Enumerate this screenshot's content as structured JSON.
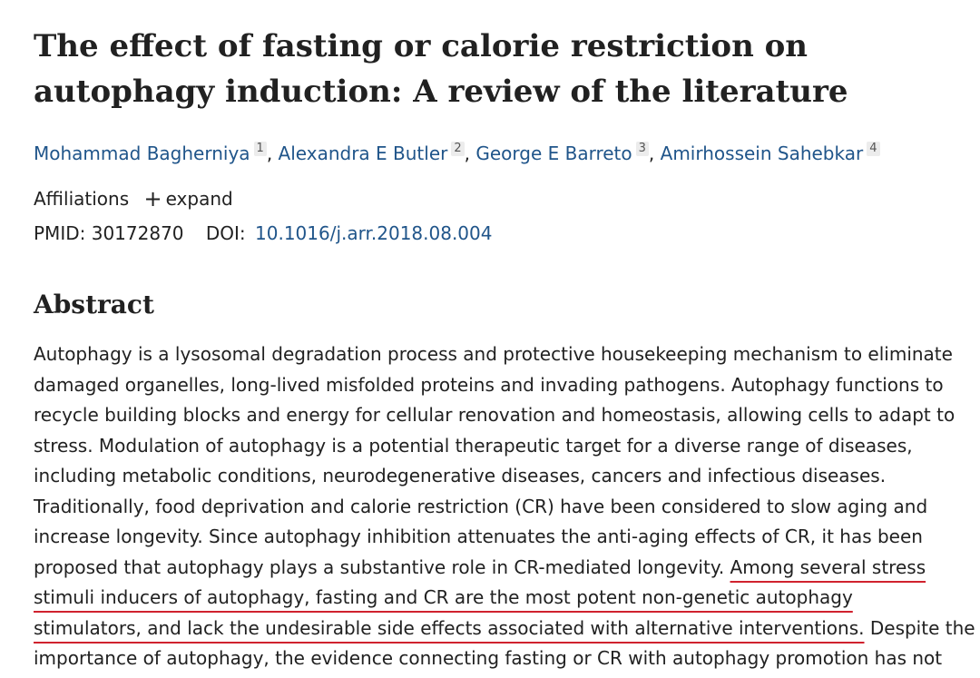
{
  "article": {
    "title_line1": "The effect of fasting or calorie restriction on",
    "title_line2": "autophagy induction: A review of the literature"
  },
  "authors": [
    {
      "name": "Mohammad Bagherniya",
      "sup": "1"
    },
    {
      "name": "Alexandra E Butler",
      "sup": "2"
    },
    {
      "name": "George E Barreto",
      "sup": "3"
    },
    {
      "name": "Amirhossein Sahebkar",
      "sup": "4"
    }
  ],
  "affiliations": {
    "label": "Affiliations",
    "expand_label": "expand",
    "expand_icon": "plus-icon"
  },
  "identifiers": {
    "pmid_label": "PMID:",
    "pmid": "30172870",
    "doi_label": "DOI:",
    "doi": "10.1016/j.arr.2018.08.004"
  },
  "abstract": {
    "heading": "Abstract",
    "lines": [
      "Autophagy is a lysosomal degradation process and protective housekeeping mechanism to eliminate",
      "damaged organelles, long-lived misfolded proteins and invading pathogens. Autophagy functions to",
      "recycle building blocks and energy for cellular renovation and homeostasis, allowing cells to adapt to",
      "stress. Modulation of autophagy is a potential therapeutic target for a diverse range of diseases,",
      "including metabolic conditions, neurodegenerative diseases, cancers and infectious diseases.",
      "Traditionally, food deprivation and calorie restriction (CR) have been considered to slow aging and",
      "increase longevity. Since autophagy inhibition attenuates the anti-aging effects of CR, it has been"
    ],
    "line8_plain": "proposed that autophagy plays a substantive role in CR-mediated longevity. ",
    "line8_underlined": "Among several stress",
    "line9_underlined": "stimuli inducers of autophagy, fasting and CR are the most potent non-genetic autophagy",
    "line10_underlined": "stimulators, and lack the undesirable side effects associated with alternative interventions.",
    "line10_plain": " Despite the",
    "line11": "importance of autophagy, the evidence connecting fasting or CR with autophagy promotion has not"
  },
  "colors": {
    "link": "#20558a",
    "text": "#212121",
    "highlight_underline": "#d0222e"
  }
}
